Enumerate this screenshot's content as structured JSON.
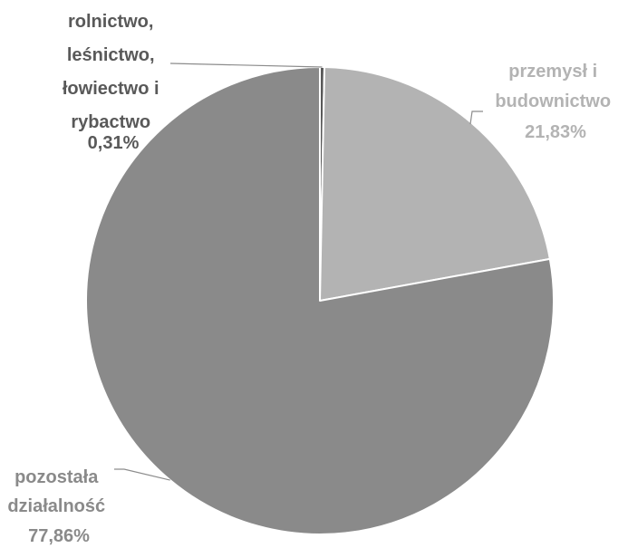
{
  "chart_data": {
    "type": "pie",
    "slices": [
      {
        "label_lines": [
          "rolnictwo,",
          "leśnictwo,",
          "łowiectwo i",
          "rybactwo"
        ],
        "value": 0.31,
        "value_label": "0,31%",
        "color": "#595959",
        "label_color": "#595959"
      },
      {
        "label_lines": [
          "przemysł i",
          "budownictwo"
        ],
        "value": 21.83,
        "value_label": "21,83%",
        "color": "#b3b3b3",
        "label_color": "#b3b3b3"
      },
      {
        "label_lines": [
          "pozostała",
          "działalność"
        ],
        "value": 77.86,
        "value_label": "77,86%",
        "color": "#8a8a8a",
        "label_color": "#8a8a8a"
      }
    ],
    "start_angle": "top (12 o'clock)",
    "direction": "clockwise",
    "slice_border_color": "#ffffff",
    "leader_line_color": "#8c8c8c",
    "legend": "none"
  }
}
